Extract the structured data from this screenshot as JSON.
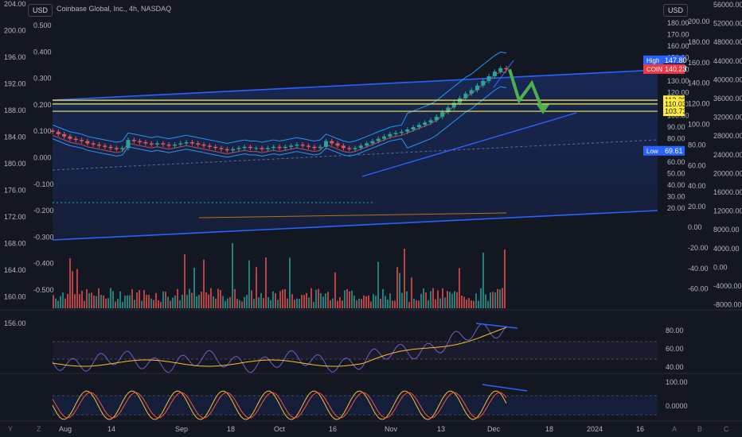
{
  "header": {
    "currency_left": "USD",
    "currency_right": "USD",
    "title": "Coinbase Global, Inc., 4h, NASDAQ"
  },
  "colors": {
    "background": "#131722",
    "up": "#26a69a",
    "down": "#ef5350",
    "channel": "#2962ff",
    "level_line": "#ffeb3b",
    "arrow": "#4caf50",
    "rsi": "#7e57c2",
    "rsi_ma": "#fbc02d",
    "stoch_k": "#fbc02d",
    "stoch_d": "#ef5350"
  },
  "chart_data": {
    "type": "candlestick",
    "symbol": "COIN",
    "interval": "4h",
    "x_ticks": [
      "Aug",
      "14",
      "Sep",
      "18",
      "Oct",
      "16",
      "Nov",
      "13",
      "Dec",
      "18",
      "2024",
      "16"
    ],
    "price_axis": {
      "ticks": [
        "180.00",
        "170.00",
        "160.00",
        "150.00",
        "140.00",
        "130.00",
        "120.00",
        "110.00",
        "100.00",
        "90.00",
        "80.00",
        "70.00",
        "60.00",
        "50.00",
        "40.00",
        "30.00",
        "20.00"
      ],
      "range": [
        17,
        185
      ]
    },
    "left_axis_a": [
      "204.00",
      "200.00",
      "196.00",
      "192.00",
      "188.00",
      "184.00",
      "180.00",
      "176.00",
      "172.00",
      "168.00",
      "164.00",
      "160.00",
      "156.00"
    ],
    "left_axis_b": [
      "0.500",
      "0.400",
      "0.300",
      "0.200",
      "0.100",
      "0.000",
      "-0.100",
      "-0.200",
      "-0.300",
      "-0.400",
      "-0.500"
    ],
    "right_axis_b": [
      "200.00",
      "180.00",
      "160.00",
      "140.00",
      "120.00",
      "100.00",
      "80.00",
      "60.00",
      "40.00",
      "20.00",
      "0.00",
      "-20.00",
      "-40.00",
      "-60.00"
    ],
    "right_axis_c": [
      "56000.00",
      "52000.00",
      "48000.00",
      "44000.00",
      "40000.00",
      "36000.00",
      "32000.00",
      "28000.00",
      "24000.00",
      "20000.00",
      "16000.00",
      "12000.00",
      "8000.00",
      "4000.00",
      "0.00",
      "-4000.00",
      "-8000.00"
    ],
    "price_labels": [
      {
        "label": "High",
        "value": "147.80"
      },
      {
        "label": "",
        "value": "141.09"
      },
      {
        "label": "COIN",
        "value": "140.23"
      },
      {
        "label": "",
        "value": "113.28"
      },
      {
        "label": "",
        "value": "110.03"
      },
      {
        "label": "",
        "value": "103.73"
      },
      {
        "label": "Low",
        "value": "69.61"
      }
    ],
    "close_series": [
      86,
      84,
      82,
      80,
      79,
      78,
      76,
      75,
      74,
      73,
      72,
      71,
      72,
      79,
      78,
      77,
      76,
      75,
      76,
      75,
      74,
      75,
      76,
      77,
      76,
      75,
      74,
      73,
      72,
      71,
      70,
      71,
      72,
      73,
      72,
      72,
      71,
      72,
      73,
      72,
      73,
      74,
      75,
      74,
      73,
      72,
      73,
      78,
      76,
      74,
      72,
      71,
      72,
      74,
      76,
      78,
      80,
      82,
      84,
      85,
      86,
      88,
      90,
      92,
      94,
      96,
      99,
      103,
      107,
      111,
      115,
      119,
      122,
      126,
      130,
      134,
      138,
      141,
      140
    ],
    "forecast_arrow": [
      {
        "period": "Dec +1",
        "price": 140
      },
      {
        "period": "Dec +2",
        "price": 113
      },
      {
        "period": "Dec +3",
        "price": 128
      },
      {
        "period": "Dec +4",
        "price": 104
      }
    ],
    "rsi_axis": [
      "80.00",
      "60.00",
      "40.00"
    ],
    "stoch_axis": [
      "100.00",
      "0.0000"
    ]
  },
  "bottom_bar": {
    "left_icons": [
      "Y",
      "Z"
    ],
    "right_icons": [
      "A",
      "B",
      "C"
    ]
  }
}
